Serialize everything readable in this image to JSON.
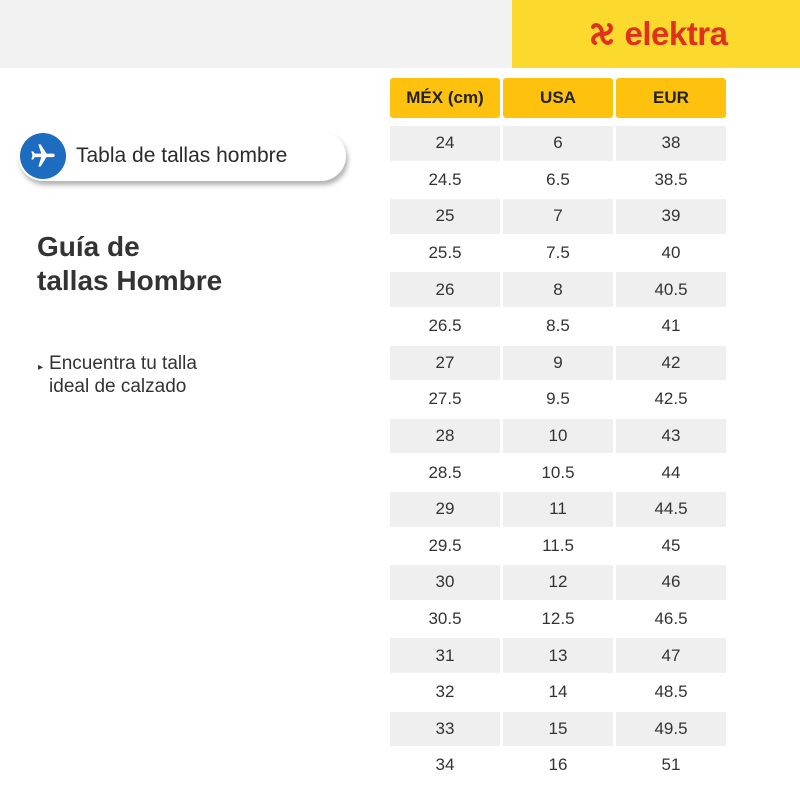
{
  "brand": {
    "name": "elektra",
    "color": "#e0301e",
    "background": "#fbd92d"
  },
  "badge": {
    "icon": "airplane-icon",
    "label": "Tabla de tallas hombre"
  },
  "title": {
    "line1": "Guía de",
    "line2": "tallas Hombre"
  },
  "subtitle": {
    "bullet": "▸",
    "line1": "Encuentra tu talla",
    "line2": "ideal de calzado"
  },
  "table": {
    "headers": [
      "MÉX (cm)",
      "USA",
      "EUR"
    ],
    "rows": [
      [
        "24",
        "6",
        "38"
      ],
      [
        "24.5",
        "6.5",
        "38.5"
      ],
      [
        "25",
        "7",
        "39"
      ],
      [
        "25.5",
        "7.5",
        "40"
      ],
      [
        "26",
        "8",
        "40.5"
      ],
      [
        "26.5",
        "8.5",
        "41"
      ],
      [
        "27",
        "9",
        "42"
      ],
      [
        "27.5",
        "9.5",
        "42.5"
      ],
      [
        "28",
        "10",
        "43"
      ],
      [
        "28.5",
        "10.5",
        "44"
      ],
      [
        "29",
        "11",
        "44.5"
      ],
      [
        "29.5",
        "11.5",
        "45"
      ],
      [
        "30",
        "12",
        "46"
      ],
      [
        "30.5",
        "12.5",
        "46.5"
      ],
      [
        "31",
        "13",
        "47"
      ],
      [
        "32",
        "14",
        "48.5"
      ],
      [
        "33",
        "15",
        "49.5"
      ],
      [
        "34",
        "16",
        "51"
      ]
    ]
  }
}
